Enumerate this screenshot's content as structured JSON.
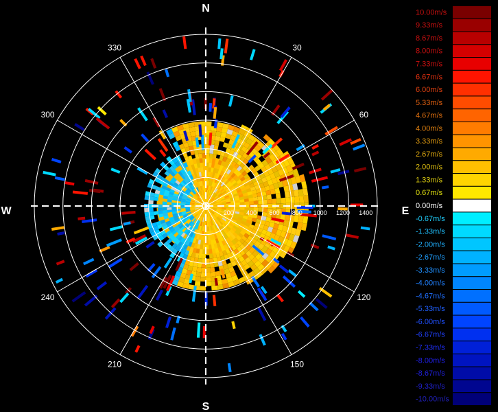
{
  "chart_data": {
    "type": "heatmap",
    "title": "",
    "projection": "polar",
    "compass": {
      "north": "N",
      "east": "E",
      "south": "S",
      "west": "W"
    },
    "azimuth_labels": [
      "30",
      "60",
      "120",
      "150",
      "210",
      "240",
      "300",
      "330"
    ],
    "range_labels": [
      "200",
      "400",
      "600",
      "800",
      "1000",
      "1200",
      "1400"
    ],
    "range_max": 1500,
    "grid": true,
    "colorbar": {
      "position": "right",
      "unit": "m/s",
      "labels": [
        "10.00m/s",
        "9.33m/s",
        "8.67m/s",
        "8.00m/s",
        "7.33m/s",
        "6.67m/s",
        "6.00m/s",
        "5.33m/s",
        "4.67m/s",
        "4.00m/s",
        "3.33m/s",
        "2.67m/s",
        "2.00m/s",
        "1.33m/s",
        "0.67m/s",
        "0.00m/s",
        "-0.67m/s",
        "-1.33m/s",
        "-2.00m/s",
        "-2.67m/s",
        "-3.33m/s",
        "-4.00m/s",
        "-4.67m/s",
        "-5.33m/s",
        "-6.00m/s",
        "-6.67m/s",
        "-7.33m/s",
        "-8.00m/s",
        "-8.67m/s",
        "-9.33m/s",
        "-10.00m/s"
      ],
      "colors": [
        "#7a0000",
        "#9a0000",
        "#b80000",
        "#d40000",
        "#e80000",
        "#ff1400",
        "#ff3000",
        "#ff4c00",
        "#ff6400",
        "#ff7c00",
        "#ff9400",
        "#ffaa00",
        "#ffc000",
        "#ffd400",
        "#ffe800",
        "#ffffff",
        "#00eeff",
        "#00daff",
        "#00c6ff",
        "#00b2ff",
        "#009cff",
        "#0086ff",
        "#0070ff",
        "#005aff",
        "#0044ff",
        "#0030f0",
        "#0020d8",
        "#0014c0",
        "#000ca8",
        "#000690",
        "#000078"
      ],
      "label_colors": [
        "#cc1010",
        "#cc1010",
        "#cc1010",
        "#cc1010",
        "#cc1010",
        "#e03010",
        "#e04010",
        "#e06010",
        "#e07010",
        "#e08010",
        "#e09a10",
        "#e0aa10",
        "#e0c010",
        "#e0d010",
        "#e0e010",
        "#ffffff",
        "#20d0ff",
        "#20c0ff",
        "#20b0ff",
        "#20a0ff",
        "#2090ff",
        "#2080ff",
        "#2070ff",
        "#2060ff",
        "#2050ff",
        "#2040ff",
        "#2030ff",
        "#2020ee",
        "#2020dd",
        "#2020cc",
        "#2020bb"
      ]
    }
  }
}
